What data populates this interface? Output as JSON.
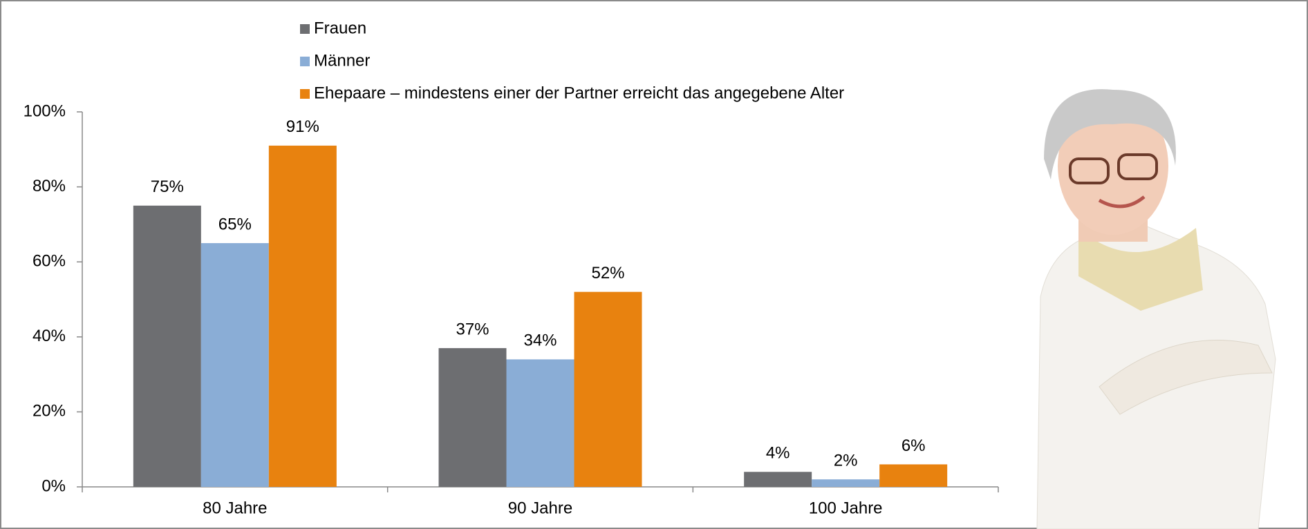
{
  "chart_data": {
    "type": "bar",
    "categories": [
      "80 Jahre",
      "90 Jahre",
      "100 Jahre"
    ],
    "series": [
      {
        "name": "Frauen",
        "color": "#6d6e71",
        "values": [
          75,
          37,
          4
        ],
        "value_labels": [
          "75%",
          "37%",
          "4%"
        ]
      },
      {
        "name": "Männer",
        "color": "#8aadd6",
        "values": [
          65,
          34,
          2
        ],
        "value_labels": [
          "65%",
          "34%",
          "2%"
        ]
      },
      {
        "name": "Ehepaare – mindestens einer der Partner erreicht das angegebene Alter",
        "color": "#e8820f",
        "values": [
          91,
          52,
          6
        ],
        "value_labels": [
          "91%",
          "52%",
          "6%"
        ]
      }
    ],
    "ylim": [
      0,
      100
    ],
    "yticks": [
      {
        "value": 0,
        "label": "0%"
      },
      {
        "value": 20,
        "label": "20%"
      },
      {
        "value": 40,
        "label": "40%"
      },
      {
        "value": 60,
        "label": "60%"
      },
      {
        "value": 80,
        "label": "80%"
      },
      {
        "value": 100,
        "label": "100%"
      }
    ],
    "grid": false
  }
}
